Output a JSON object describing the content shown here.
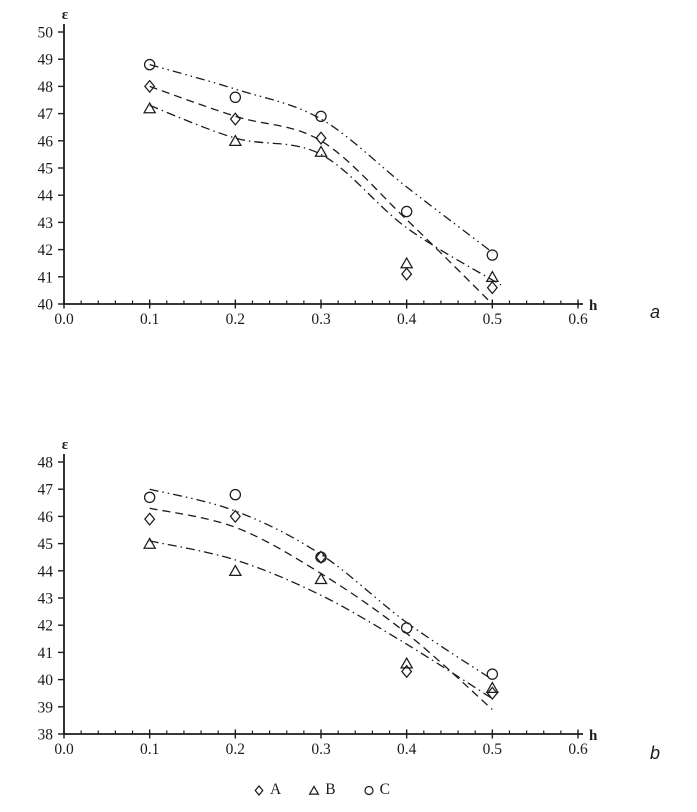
{
  "page": {
    "bg": "#ffffff",
    "ink": "#1c1c1c"
  },
  "legend": {
    "items": [
      {
        "marker": "diamond",
        "label": "A"
      },
      {
        "marker": "triangle",
        "label": "B"
      },
      {
        "marker": "circle",
        "label": "C"
      }
    ]
  },
  "chart_data": [
    {
      "type": "scatter",
      "panel": "a",
      "title": "",
      "xlabel": "h",
      "ylabel": "ε",
      "xlim": [
        0.0,
        0.6
      ],
      "ylim": [
        40,
        50
      ],
      "xtick_labels": [
        "0.0",
        "0.1",
        "0.2",
        "0.3",
        "0.4",
        "0.5",
        "0.6"
      ],
      "ytick_labels": [
        "40",
        "41",
        "42",
        "43",
        "44",
        "45",
        "46",
        "47",
        "48",
        "49",
        "50"
      ],
      "minor_ticks_per_major_x": 4,
      "grid": false,
      "legend_position": "below-figure",
      "x": [
        0.1,
        0.2,
        0.3,
        0.4,
        0.5
      ],
      "series": [
        {
          "name": "A",
          "marker": "diamond",
          "line": "dashed",
          "values": [
            48.0,
            46.8,
            46.1,
            41.1,
            40.6
          ],
          "trend": [
            [
              0.1,
              48.0
            ],
            [
              0.2,
              46.9
            ],
            [
              0.3,
              46.0
            ],
            [
              0.4,
              43.1
            ],
            [
              0.5,
              40.0
            ]
          ]
        },
        {
          "name": "B",
          "marker": "triangle",
          "line": "dash-dot",
          "values": [
            47.2,
            46.0,
            45.6,
            41.5,
            41.0
          ],
          "trend": [
            [
              0.1,
              47.3
            ],
            [
              0.2,
              46.1
            ],
            [
              0.3,
              45.5
            ],
            [
              0.4,
              42.8
            ],
            [
              0.51,
              40.7
            ]
          ]
        },
        {
          "name": "C",
          "marker": "circle",
          "line": "dash-dot-dot",
          "values": [
            48.8,
            47.6,
            46.9,
            43.4,
            41.8
          ],
          "trend": [
            [
              0.1,
              48.8
            ],
            [
              0.2,
              47.9
            ],
            [
              0.3,
              46.8
            ],
            [
              0.4,
              44.3
            ],
            [
              0.5,
              41.9
            ]
          ]
        }
      ]
    },
    {
      "type": "scatter",
      "panel": "b",
      "title": "",
      "xlabel": "h",
      "ylabel": "ε",
      "xlim": [
        0.0,
        0.6
      ],
      "ylim": [
        38,
        48
      ],
      "xtick_labels": [
        "0.0",
        "0.1",
        "0.2",
        "0.3",
        "0.4",
        "0.5",
        "0.6"
      ],
      "ytick_labels": [
        "38",
        "39",
        "40",
        "41",
        "42",
        "43",
        "44",
        "45",
        "46",
        "47",
        "48"
      ],
      "minor_ticks_per_major_x": 4,
      "grid": false,
      "legend_position": "below-figure",
      "x": [
        0.1,
        0.2,
        0.3,
        0.4,
        0.5
      ],
      "series": [
        {
          "name": "A",
          "marker": "diamond",
          "line": "dashed",
          "values": [
            45.9,
            46.0,
            44.5,
            40.3,
            39.5
          ],
          "trend": [
            [
              0.1,
              46.3
            ],
            [
              0.2,
              45.6
            ],
            [
              0.3,
              43.9
            ],
            [
              0.4,
              41.7
            ],
            [
              0.5,
              38.9
            ]
          ]
        },
        {
          "name": "B",
          "marker": "triangle",
          "line": "dash-dot",
          "values": [
            45.0,
            44.0,
            43.7,
            40.6,
            39.7
          ],
          "trend": [
            [
              0.1,
              45.1
            ],
            [
              0.2,
              44.4
            ],
            [
              0.3,
              43.1
            ],
            [
              0.4,
              41.3
            ],
            [
              0.5,
              39.3
            ]
          ]
        },
        {
          "name": "C",
          "marker": "circle",
          "line": "dash-dot-dot",
          "values": [
            46.7,
            46.8,
            44.5,
            41.9,
            40.2
          ],
          "trend": [
            [
              0.1,
              47.0
            ],
            [
              0.2,
              46.2
            ],
            [
              0.3,
              44.6
            ],
            [
              0.4,
              42.1
            ],
            [
              0.5,
              40.0
            ]
          ]
        }
      ]
    }
  ]
}
